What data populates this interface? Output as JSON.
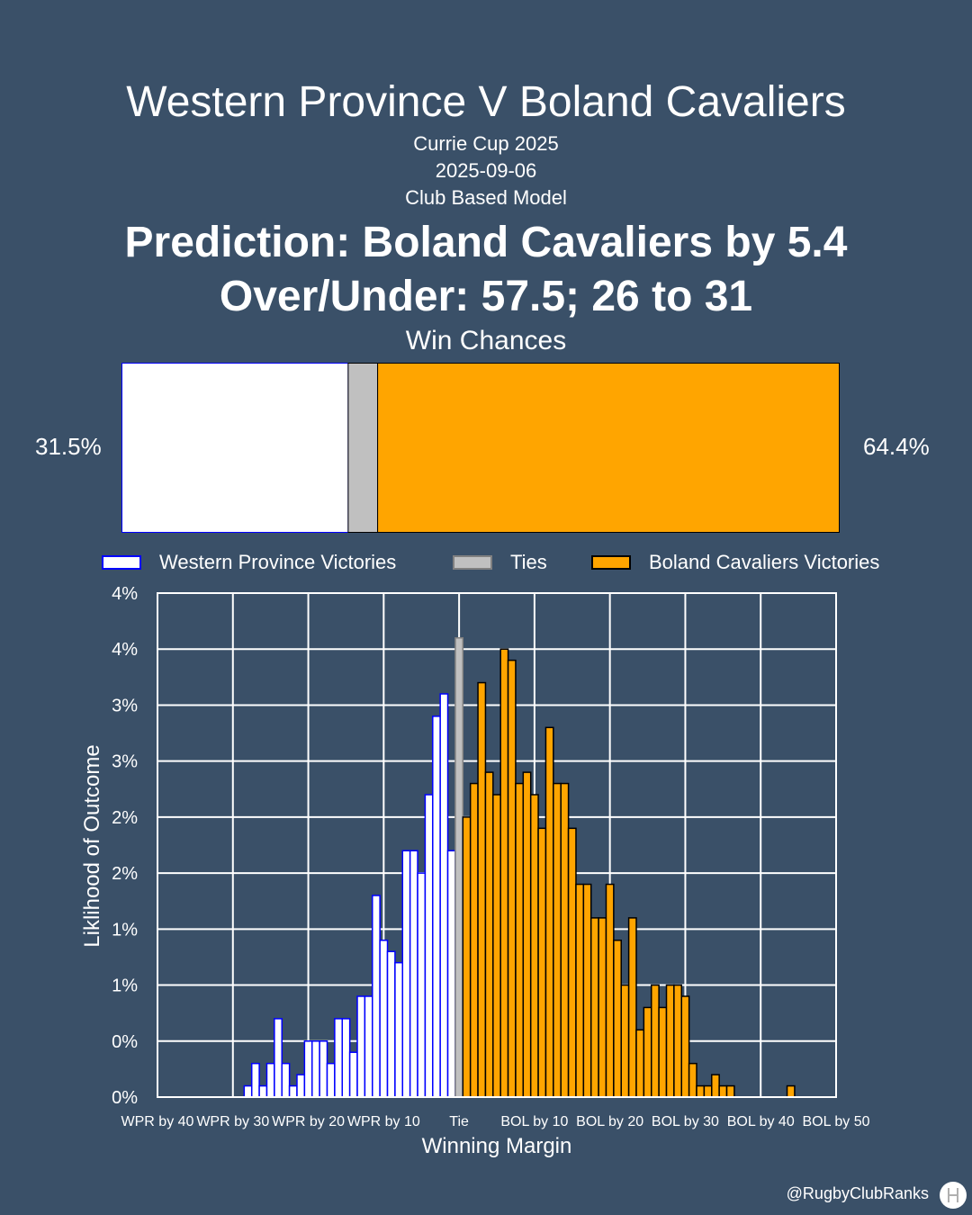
{
  "header": {
    "title": "Western Province V Boland Cavaliers",
    "competition": "Currie Cup 2025",
    "date": "2025-09-06",
    "model": "Club Based Model",
    "prediction": "Prediction: Boland Cavaliers by 5.4",
    "over_under": "Over/Under: 57.5; 26 to 31"
  },
  "win_chances": {
    "title": "Win Chances",
    "left_pct_label": "31.5%",
    "right_pct_label": "64.4%",
    "home_share": 0.315,
    "tie_share": 0.041,
    "away_share": 0.644
  },
  "legend": {
    "home": "Western Province Victories",
    "tie": "Ties",
    "away": "Boland Cavaliers Victories"
  },
  "colors": {
    "background": "#3a5068",
    "home_fill": "#ffffff",
    "home_edge": "#0000ff",
    "tie_fill": "#c0c0c0",
    "away_fill": "#ffa500",
    "away_edge": "#000000"
  },
  "chart_data": {
    "type": "bar",
    "xlabel": "Winning Margin",
    "ylabel": "Liklihood of Outcome",
    "xlim": [
      -40,
      50
    ],
    "ylim": [
      0,
      0.045
    ],
    "x_ticks": [
      -40,
      -30,
      -20,
      -10,
      0,
      10,
      20,
      30,
      40,
      50
    ],
    "x_tick_labels": [
      "WPR by 40",
      "WPR by 30",
      "WPR by 20",
      "WPR by 10",
      "Tie",
      "BOL by 10",
      "BOL by 20",
      "BOL by 30",
      "BOL by 40",
      "BOL by 50"
    ],
    "y_ticks": [
      0,
      0.005,
      0.01,
      0.015,
      0.02,
      0.025,
      0.03,
      0.035,
      0.04,
      0.045
    ],
    "y_tick_labels": [
      "0%",
      "0%",
      "1%",
      "1%",
      "2%",
      "2%",
      "3%",
      "3%",
      "4%",
      "4%"
    ],
    "grid": true,
    "legend_position": "top",
    "series": [
      {
        "name": "Western Province Victories",
        "x": [
          -28,
          -27,
          -26,
          -25,
          -24,
          -23,
          -22,
          -21,
          -20,
          -19,
          -18,
          -17,
          -16,
          -15,
          -14,
          -13,
          -12,
          -11,
          -10,
          -9,
          -8,
          -7,
          -6,
          -5,
          -4,
          -3,
          -2,
          -1
        ],
        "values": [
          0.001,
          0.003,
          0.001,
          0.003,
          0.007,
          0.003,
          0.001,
          0.002,
          0.005,
          0.005,
          0.005,
          0.003,
          0.007,
          0.007,
          0.004,
          0.009,
          0.009,
          0.018,
          0.014,
          0.013,
          0.012,
          0.022,
          0.022,
          0.02,
          0.027,
          0.034,
          0.036,
          0.022
        ]
      },
      {
        "name": "Ties",
        "x": [
          0
        ],
        "values": [
          0.041
        ]
      },
      {
        "name": "Boland Cavaliers Victories",
        "x": [
          1,
          2,
          3,
          4,
          5,
          6,
          7,
          8,
          9,
          10,
          11,
          12,
          13,
          14,
          15,
          16,
          17,
          18,
          19,
          20,
          21,
          22,
          23,
          24,
          25,
          26,
          27,
          28,
          29,
          30,
          31,
          32,
          33,
          34,
          35,
          36,
          37,
          38,
          39,
          44
        ],
        "values": [
          0.025,
          0.028,
          0.037,
          0.029,
          0.027,
          0.04,
          0.039,
          0.028,
          0.029,
          0.027,
          0.024,
          0.033,
          0.028,
          0.028,
          0.024,
          0.019,
          0.019,
          0.016,
          0.016,
          0.019,
          0.014,
          0.01,
          0.016,
          0.006,
          0.008,
          0.01,
          0.008,
          0.01,
          0.01,
          0.009,
          0.003,
          0.001,
          0.001,
          0.002,
          0.001,
          0.001,
          0,
          0,
          0,
          0.001
        ]
      }
    ]
  },
  "footer": {
    "handle": "@RugbyClubRanks"
  }
}
